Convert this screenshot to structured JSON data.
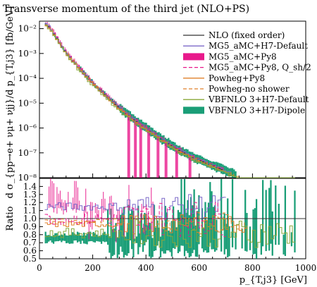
{
  "chart_data": {
    "title": "Transverse momentum of the third jet (NLO+PS)",
    "type": "histogram-with-ratio",
    "upper": {
      "ylabel": "d σ_{pp→e+ νμ+ νjj}/d p_{T,j3} [fb/GeV]",
      "yscale": "log",
      "ylim": [
        1e-08,
        0.02
      ],
      "yticks": [
        {
          "value": 0.01,
          "label": "10⁻²"
        },
        {
          "value": 0.001,
          "label": "10⁻³"
        },
        {
          "value": 0.0001,
          "label": "10⁻⁴"
        },
        {
          "value": 1e-05,
          "label": "10⁻⁵"
        },
        {
          "value": 1e-06,
          "label": "10⁻⁶"
        },
        {
          "value": 1e-07,
          "label": "10⁻⁷"
        },
        {
          "value": 1e-08,
          "label": "10⁻⁸"
        }
      ]
    },
    "lower": {
      "ylabel": "Ratio",
      "ylim": [
        0.5,
        1.5
      ],
      "yticks": [
        "0.5",
        "0.6",
        "0.7",
        "0.8",
        "0.9",
        "1.0",
        "1.1",
        "1.2",
        "1.3",
        "1.4"
      ]
    },
    "xlabel": "p_{T,j3} [GeV]",
    "xlim": [
      0,
      1000
    ],
    "xticks": [
      "0",
      "200",
      "400",
      "600",
      "800",
      "1000"
    ],
    "legend_position": "top-right",
    "series": [
      {
        "name": "NLO (fixed order)",
        "color": "#333333",
        "style": "line"
      },
      {
        "name": "MG5_aMC+H7-Default",
        "color": "#7b68c8",
        "style": "line"
      },
      {
        "name": "MG5_aMC+Py8",
        "color": "#e8198b",
        "style": "band"
      },
      {
        "name": "MG5_aMC+Py8, Q_sh/2",
        "color": "#e8198b",
        "style": "dashed"
      },
      {
        "name": "Powheg+Py8",
        "color": "#e0802a",
        "style": "line"
      },
      {
        "name": "Powheg-no shower",
        "color": "#e0802a",
        "style": "dashed"
      },
      {
        "name": "VBFNLO 3+H7-Default",
        "color": "#8aa83a",
        "style": "line"
      },
      {
        "name": "VBFNLO 3+H7-Dipole",
        "color": "#1a9e77",
        "style": "band"
      }
    ],
    "main_curve": {
      "x": [
        20,
        40,
        60,
        80,
        100,
        125,
        150,
        175,
        200,
        225,
        250,
        275,
        300,
        325,
        350,
        375,
        400,
        450,
        500,
        550,
        600,
        650,
        700
      ],
      "y": [
        0.016,
        0.0105,
        0.005,
        0.0022,
        0.0011,
        0.00052,
        0.00025,
        0.000125,
        6.5e-05,
        3.5e-05,
        2e-05,
        1.1e-05,
        6.5e-06,
        3.8e-06,
        2.3e-06,
        1.5e-06,
        9.5e-07,
        4e-07,
        1.8e-07,
        9e-08,
        5e-08,
        3e-08,
        1.8e-08
      ]
    }
  }
}
